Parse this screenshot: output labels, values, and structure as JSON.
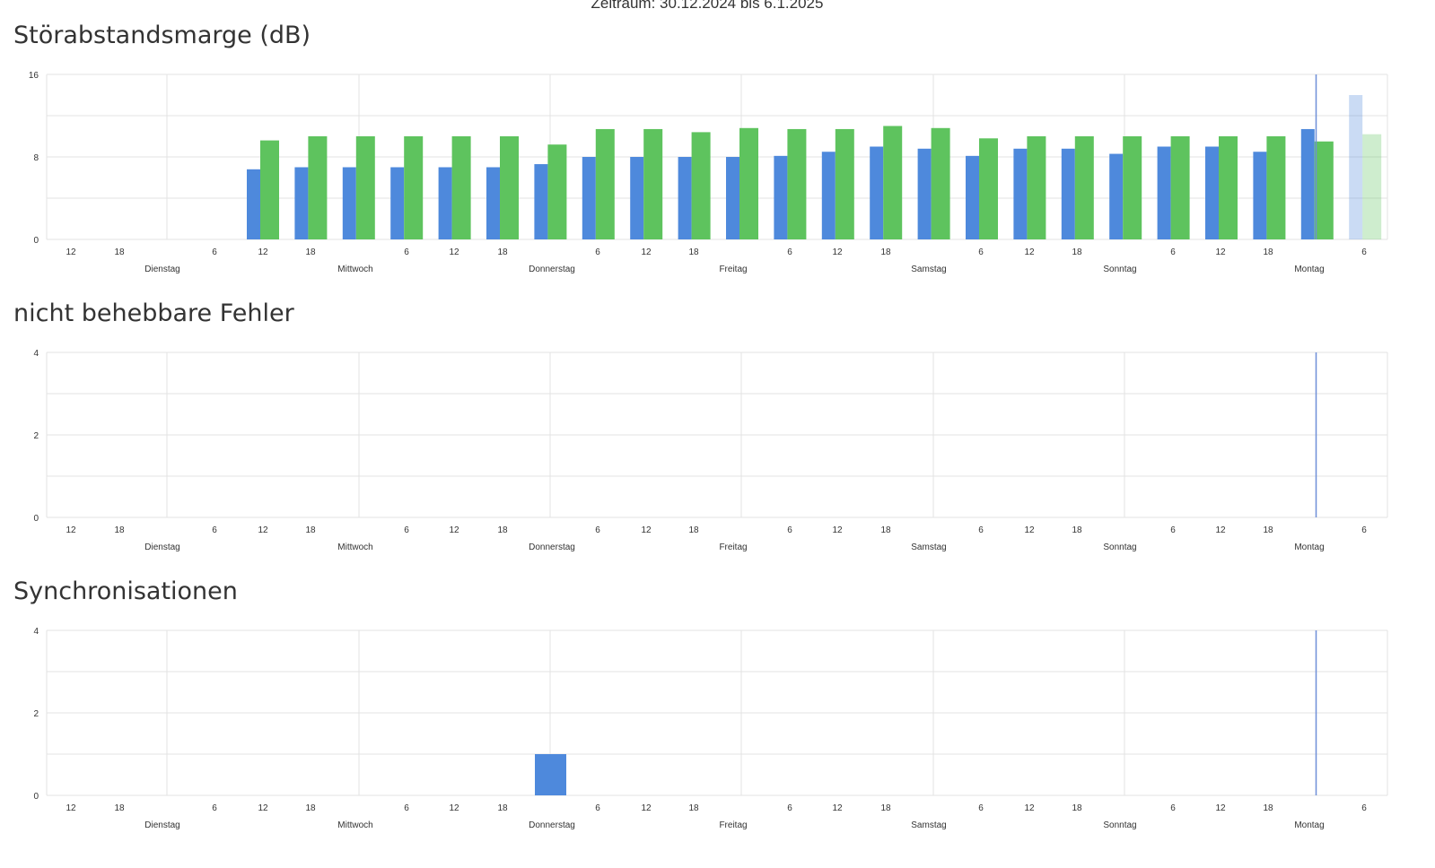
{
  "period_text": "Zeitraum: 30.12.2024 bis 6.1.2025",
  "colors": {
    "blue": "#4e89dc",
    "green": "#5ec35e",
    "grid": "#e3e3e3",
    "marker": "#6f8fd8"
  },
  "charts": [
    {
      "title": "Störabstandsmarge (dB)"
    },
    {
      "title": "nicht behebbare Fehler"
    },
    {
      "title": "Synchronisationen"
    }
  ],
  "chart_data": [
    {
      "type": "bar",
      "title": "Störabstandsmarge (dB)",
      "ylim": [
        0,
        16
      ],
      "yticks": [
        0,
        8,
        16
      ],
      "grid": true,
      "x_tick_labels": [
        "12",
        "18",
        "6",
        "12",
        "18",
        "6",
        "12",
        "18",
        "6",
        "12",
        "18",
        "6",
        "12",
        "18",
        "6",
        "12",
        "18",
        "6",
        "12",
        "18",
        "6",
        "12",
        "18",
        "6"
      ],
      "day_labels": [
        "Dienstag",
        "Mittwoch",
        "Donnerstag",
        "Freitag",
        "Samstag",
        "Sonntag",
        "Montag"
      ],
      "bin_hours": 6,
      "first_bar_hour": 24,
      "series": [
        {
          "values": [
            6.8,
            7.0,
            7.0,
            7.0,
            7.0,
            7.0,
            7.3,
            8.0,
            8.0,
            8.0,
            8.0,
            8.1,
            8.5,
            9.0,
            8.8,
            8.1,
            8.8,
            8.8,
            8.3,
            9.0,
            9.0,
            8.5,
            10.7,
            14.0
          ]
        },
        {
          "values": [
            9.6,
            10.0,
            10.0,
            10.0,
            10.0,
            10.0,
            9.2,
            10.7,
            10.7,
            10.4,
            10.8,
            10.7,
            10.7,
            11.0,
            10.8,
            9.8,
            10.0,
            10.0,
            10.0,
            10.0,
            10.0,
            10.0,
            9.5,
            10.2
          ]
        }
      ],
      "faded_bar_index": 23
    },
    {
      "type": "bar",
      "title": "nicht behebbare Fehler",
      "ylim": [
        0,
        4
      ],
      "yticks": [
        0,
        2,
        4
      ],
      "grid": true,
      "x_tick_labels": [
        "12",
        "18",
        "6",
        "12",
        "18",
        "6",
        "12",
        "18",
        "6",
        "12",
        "18",
        "6",
        "12",
        "18",
        "6",
        "12",
        "18",
        "6",
        "12",
        "18",
        "6",
        "12",
        "18",
        "6"
      ],
      "day_labels": [
        "Dienstag",
        "Mittwoch",
        "Donnerstag",
        "Freitag",
        "Samstag",
        "Sonntag",
        "Montag"
      ],
      "series": [
        {
          "values": []
        }
      ]
    },
    {
      "type": "bar",
      "title": "Synchronisationen",
      "ylim": [
        0,
        4
      ],
      "yticks": [
        0,
        2,
        4
      ],
      "grid": true,
      "x_tick_labels": [
        "12",
        "18",
        "6",
        "12",
        "18",
        "6",
        "12",
        "18",
        "6",
        "12",
        "18",
        "6",
        "12",
        "18",
        "6",
        "12",
        "18",
        "6",
        "12",
        "18",
        "6",
        "12",
        "18",
        "6"
      ],
      "day_labels": [
        "Dienstag",
        "Mittwoch",
        "Donnerstag",
        "Freitag",
        "Samstag",
        "Sonntag",
        "Montag"
      ],
      "series": [
        {
          "bars": [
            {
              "hour": 66,
              "value": 1
            }
          ]
        }
      ]
    }
  ]
}
